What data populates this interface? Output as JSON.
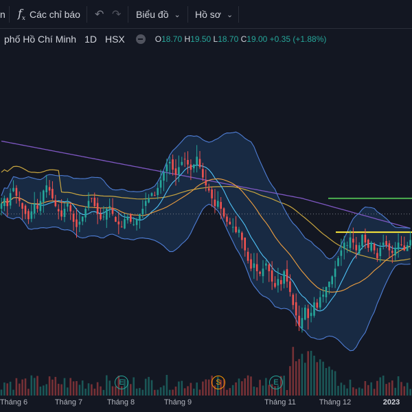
{
  "toolbar": {
    "partial_left": "n",
    "indicators_label": "Các chỉ báo",
    "chart_label": "Biểu đồ",
    "profile_label": "Hồ sơ",
    "fx_glyph": "f",
    "fx_sub": "x"
  },
  "legend": {
    "symbol_name": "phố Hồ Chí Minh",
    "interval": "1D",
    "exchange": "HSX",
    "o_label": "O",
    "o_value": "18.70",
    "h_label": "H",
    "h_value": "19.50",
    "l_label": "L",
    "l_value": "18.70",
    "c_label": "C",
    "c_value": "19.00",
    "change": "+0.35 (+1.88%)"
  },
  "colors": {
    "background": "#131722",
    "up": "#26a69a",
    "down": "#ef5350",
    "bb_line": "#4f7ed6",
    "bb_fill": "#1e3a5f",
    "ma_orange": "#f0a040",
    "ma_purple": "#7e57c2",
    "ma_teal": "#4fc3f7",
    "ma_long": "#c9a640",
    "green_level": "#4caf50",
    "yellow_level": "#ffeb3b"
  },
  "time_axis": [
    {
      "label": "Tháng 6",
      "bold": false
    },
    {
      "label": "Tháng 7",
      "bold": false
    },
    {
      "label": "Tháng 8",
      "bold": false
    },
    {
      "label": "Tháng 9",
      "bold": false
    },
    {
      "label": "Tháng 11",
      "bold": false
    },
    {
      "label": "Tháng 12",
      "bold": false
    },
    {
      "label": "2023",
      "bold": true
    }
  ],
  "events": [
    {
      "letter": "E",
      "color": "#26a69a"
    },
    {
      "letter": "S",
      "color": "#ff9800"
    },
    {
      "letter": "E",
      "color": "#26a69a"
    }
  ],
  "chart_data": {
    "type": "candlestick",
    "levels": {
      "green": 20.6,
      "yellow": 19.3
    },
    "close_path": [
      20.4,
      20.6,
      20.3,
      20.8,
      21.0,
      20.7,
      20.5,
      20.2,
      20.0,
      19.8,
      20.1,
      20.4,
      20.2,
      20.5,
      20.9,
      21.1,
      20.9,
      20.6,
      20.3,
      20.1,
      19.9,
      20.2,
      20.4,
      20.1,
      19.7,
      19.5,
      19.7,
      19.9,
      20.2,
      20.5,
      20.6,
      20.3,
      20.0,
      19.8,
      19.9,
      20.2,
      20.3,
      20.0,
      19.7,
      19.6,
      19.5,
      19.8,
      19.9,
      19.7,
      19.6,
      19.8,
      20.0,
      20.2,
      20.5,
      20.6,
      20.8,
      20.7,
      21.0,
      21.3,
      21.6,
      21.9,
      22.0,
      21.7,
      21.5,
      21.8,
      22.0,
      22.1,
      21.9,
      21.7,
      21.9,
      22.2,
      21.8,
      21.4,
      21.1,
      20.9,
      20.6,
      20.3,
      20.5,
      20.2,
      19.9,
      19.7,
      19.6,
      19.5,
      19.3,
      19.4,
      19.0,
      18.6,
      18.2,
      17.9,
      18.1,
      17.8,
      17.7,
      17.9,
      18.1,
      17.8,
      17.4,
      17.2,
      17.5,
      17.3,
      17.8,
      17.4,
      17.0,
      16.5,
      16.1,
      15.7,
      16.0,
      16.4,
      16.0,
      16.2,
      16.6,
      16.4,
      16.8,
      16.9,
      17.2,
      17.4,
      17.6,
      17.9,
      18.3,
      18.6,
      18.9,
      18.8,
      19.1,
      18.9,
      18.6,
      18.8,
      19.2,
      18.9,
      18.7,
      18.9,
      18.6,
      18.3,
      18.7,
      18.9,
      18.8,
      18.6,
      18.5,
      18.7,
      18.9,
      18.8,
      18.6,
      18.8,
      19.0
    ]
  }
}
